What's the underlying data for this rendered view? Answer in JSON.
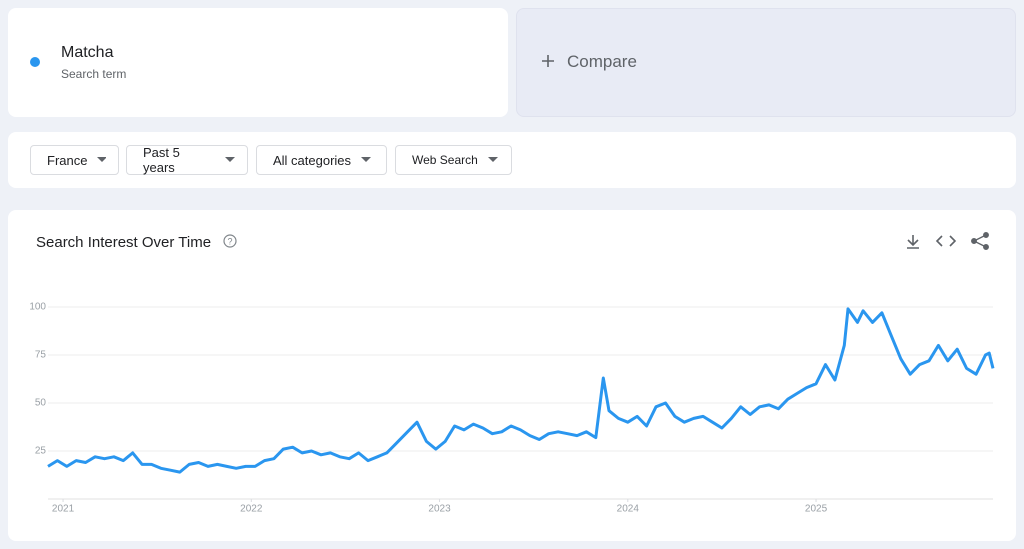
{
  "term": {
    "subtitle": "Search term"
  },
  "compare": "Compare",
  "filters": [
    "France",
    "Past 5 years",
    "All categories",
    "Web Search"
  ],
  "chart_data": {
    "type": "line",
    "title": "Search Interest Over Time",
    "x": [
      2020.92,
      2020.97,
      2021.02,
      2021.07,
      2021.12,
      2021.17,
      2021.22,
      2021.27,
      2021.32,
      2021.37,
      2021.42,
      2021.47,
      2021.52,
      2021.57,
      2021.62,
      2021.67,
      2021.72,
      2021.77,
      2021.82,
      2021.87,
      2021.92,
      2021.97,
      2022.02,
      2022.07,
      2022.12,
      2022.17,
      2022.22,
      2022.27,
      2022.32,
      2022.37,
      2022.42,
      2022.47,
      2022.52,
      2022.57,
      2022.62,
      2022.67,
      2022.72,
      2022.77,
      2022.82,
      2022.88,
      2022.93,
      2022.98,
      2023.03,
      2023.08,
      2023.13,
      2023.18,
      2023.23,
      2023.28,
      2023.33,
      2023.38,
      2023.43,
      2023.48,
      2023.53,
      2023.58,
      2023.63,
      2023.68,
      2023.73,
      2023.78,
      2023.83,
      2023.87,
      2023.9,
      2023.95,
      2024.0,
      2024.05,
      2024.1,
      2024.15,
      2024.2,
      2024.25,
      2024.3,
      2024.35,
      2024.4,
      2024.45,
      2024.5,
      2024.55,
      2024.6,
      2024.65,
      2024.7,
      2024.75,
      2024.8,
      2024.85,
      2024.9,
      2024.95,
      2025.0,
      2025.05,
      2025.1,
      2025.15,
      2025.17,
      2025.22,
      2025.25,
      2025.3,
      2025.35,
      2025.4,
      2025.45,
      2025.5,
      2025.55,
      2025.6,
      2025.65,
      2025.7,
      2025.75,
      2025.8,
      2025.85,
      2025.9,
      2025.92,
      2025.94
    ],
    "series": [
      {
        "name": "Matcha",
        "color": "#2a96ef",
        "values": [
          17,
          20,
          17,
          20,
          19,
          22,
          21,
          22,
          20,
          24,
          18,
          18,
          16,
          15,
          14,
          18,
          19,
          17,
          18,
          17,
          16,
          17,
          17,
          20,
          21,
          26,
          27,
          24,
          25,
          23,
          24,
          22,
          21,
          24,
          20,
          22,
          24,
          29,
          34,
          40,
          30,
          26,
          30,
          38,
          36,
          39,
          37,
          34,
          35,
          38,
          36,
          33,
          31,
          34,
          35,
          34,
          33,
          35,
          32,
          63,
          46,
          42,
          40,
          43,
          38,
          48,
          50,
          43,
          40,
          42,
          43,
          40,
          37,
          42,
          48,
          44,
          48,
          49,
          47,
          52,
          55,
          58,
          60,
          70,
          62,
          80,
          99,
          92,
          98,
          92,
          97,
          85,
          73,
          65,
          70,
          72,
          80,
          72,
          78,
          68,
          65,
          75,
          76,
          68
        ]
      }
    ],
    "xlim": [
      2020.92,
      2025.94
    ],
    "ylim": [
      0,
      100
    ],
    "xticks": [
      2021,
      2022,
      2023,
      2024,
      2025
    ],
    "yticks": [
      25,
      50,
      75,
      100
    ],
    "grid": true
  }
}
